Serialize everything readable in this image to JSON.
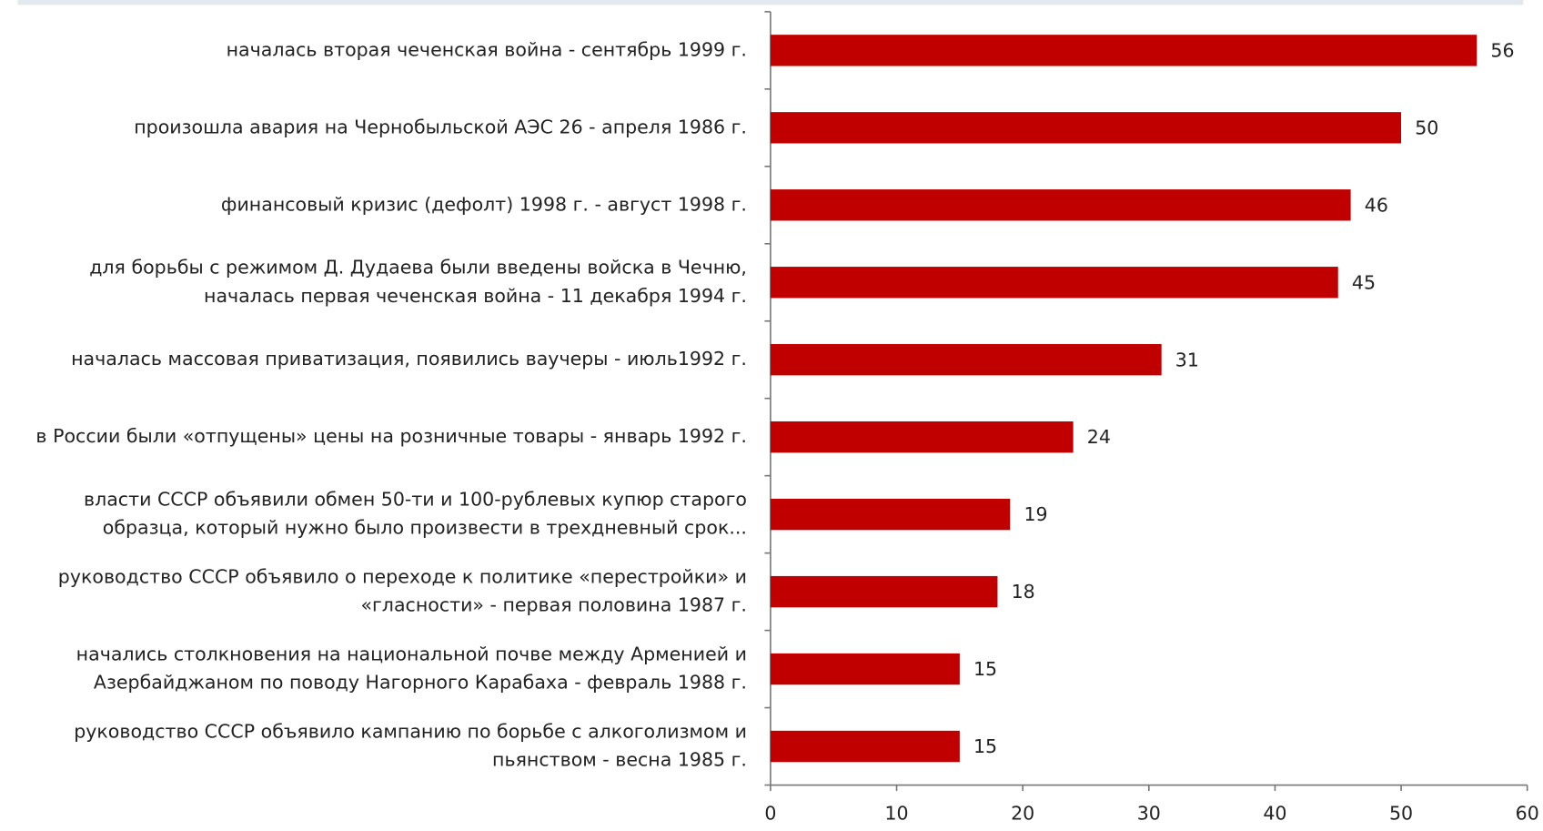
{
  "chart_data": {
    "type": "bar",
    "orientation": "horizontal",
    "categories": [
      "началась вторая чеченская война - сентябрь 1999 г.",
      "произошла авария на Чернобыльской АЭС 26 - апреля 1986 г.",
      "финансовый кризис (дефолт) 1998 г. - август 1998 г.",
      "для борьбы с режимом Д. Дудаева были введены войска  в Чечню,\nначалась первая чеченская война - 11 декабря 1994 г.",
      "началась массовая приватизация, появились ваучеры - июль1992 г.",
      "в России были «отпущены» цены на розничные товары - январь 1992 г.",
      "власти СССР объявили обмен 50-ти и 100-рублевых купюр старого\nобразца, который нужно было произвести  в трехдневный срок...",
      "руководство СССР объявило о переходе  к политике «перестройки» и\n«гласности» - первая половина 1987 г.",
      "начались столкновения на национальной почве  между Арменией и\nАзербайджаном по поводу  Нагорного Карабаха - февраль 1988 г.",
      "руководство СССР объявило кампанию по борьбе  с алкоголизмом и\nпьянством - весна 1985 г."
    ],
    "values": [
      56,
      50,
      46,
      45,
      31,
      24,
      19,
      18,
      15,
      15
    ],
    "color": "#c00000",
    "xlim": [
      0,
      60
    ],
    "xticks": [
      0,
      10,
      20,
      30,
      40,
      50,
      60
    ]
  }
}
